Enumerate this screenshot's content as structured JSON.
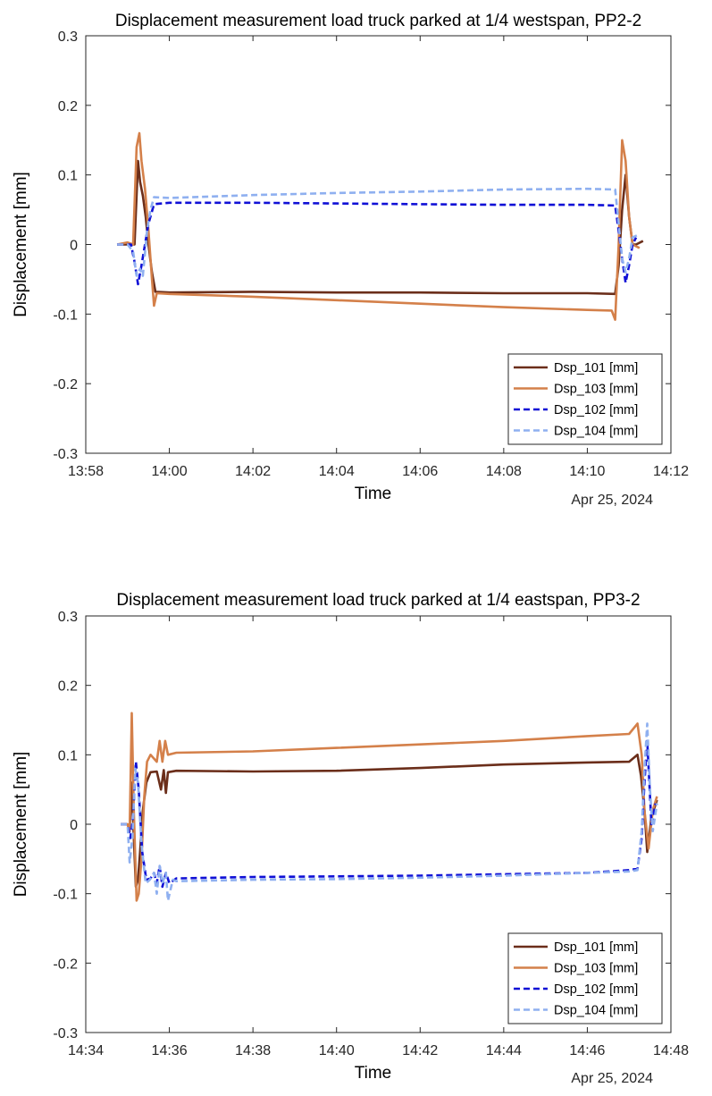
{
  "chart_data": [
    {
      "type": "line",
      "title": "Displacement measurement load truck parked at 1/4 westspan, PP2-2",
      "xlabel": "Time",
      "ylabel": "Displacement [mm]",
      "date_label": "Apr 25, 2024",
      "x_ticks": [
        "13:58",
        "14:00",
        "14:02",
        "14:04",
        "14:06",
        "14:08",
        "14:10",
        "14:12"
      ],
      "xlim": [
        "13:58",
        "14:12"
      ],
      "y_ticks": [
        "-0.3",
        "-0.2",
        "-0.1",
        "0",
        "0.1",
        "0.2",
        "0.3"
      ],
      "ylim": [
        -0.3,
        0.3
      ],
      "legend_position": "bottom-right",
      "grid": false,
      "series": [
        {
          "name": "Dsp_101 [mm]",
          "color": "#6b2e1a",
          "style": "solid",
          "points": [
            [
              "13:58:45",
              0.0
            ],
            [
              "13:59:00",
              0.0
            ],
            [
              "13:59:10",
              0.0
            ],
            [
              "13:59:15",
              0.12
            ],
            [
              "13:59:18",
              0.09
            ],
            [
              "13:59:22",
              0.07
            ],
            [
              "13:59:26",
              0.04
            ],
            [
              "13:59:30",
              0.0
            ],
            [
              "13:59:35",
              -0.04
            ],
            [
              "13:59:40",
              -0.068
            ],
            [
              "14:00:00",
              -0.069
            ],
            [
              "14:02:00",
              -0.068
            ],
            [
              "14:04:00",
              -0.069
            ],
            [
              "14:06:00",
              -0.069
            ],
            [
              "14:08:00",
              -0.07
            ],
            [
              "14:10:00",
              -0.07
            ],
            [
              "14:10:40",
              -0.071
            ],
            [
              "14:10:45",
              -0.03
            ],
            [
              "14:10:50",
              0.05
            ],
            [
              "14:10:55",
              0.1
            ],
            [
              "14:11:00",
              0.04
            ],
            [
              "14:11:05",
              0.0
            ],
            [
              "14:11:10",
              0.0
            ],
            [
              "14:11:20",
              0.005
            ]
          ]
        },
        {
          "name": "Dsp_103 [mm]",
          "color": "#d4804a",
          "style": "solid",
          "points": [
            [
              "13:58:45",
              0.0
            ],
            [
              "13:59:00",
              0.003
            ],
            [
              "13:59:08",
              0.0
            ],
            [
              "13:59:13",
              0.14
            ],
            [
              "13:59:17",
              0.16
            ],
            [
              "13:59:20",
              0.12
            ],
            [
              "13:59:25",
              0.08
            ],
            [
              "13:59:30",
              0.02
            ],
            [
              "13:59:35",
              -0.05
            ],
            [
              "13:59:38",
              -0.088
            ],
            [
              "13:59:42",
              -0.07
            ],
            [
              "14:00:00",
              -0.071
            ],
            [
              "14:02:00",
              -0.075
            ],
            [
              "14:04:00",
              -0.08
            ],
            [
              "14:06:00",
              -0.085
            ],
            [
              "14:08:00",
              -0.09
            ],
            [
              "14:10:00",
              -0.094
            ],
            [
              "14:10:35",
              -0.095
            ],
            [
              "14:10:40",
              -0.108
            ],
            [
              "14:10:45",
              0.0
            ],
            [
              "14:10:50",
              0.15
            ],
            [
              "14:10:55",
              0.12
            ],
            [
              "14:11:00",
              0.04
            ],
            [
              "14:11:05",
              0.0
            ],
            [
              "14:11:15",
              -0.005
            ]
          ]
        },
        {
          "name": "Dsp_102 [mm]",
          "color": "#1010d6",
          "style": "dashed",
          "points": [
            [
              "13:58:45",
              0.0
            ],
            [
              "13:59:05",
              0.0
            ],
            [
              "13:59:10",
              -0.025
            ],
            [
              "13:59:15",
              -0.057
            ],
            [
              "13:59:20",
              -0.03
            ],
            [
              "13:59:25",
              0.0
            ],
            [
              "13:59:30",
              0.03
            ],
            [
              "13:59:38",
              0.058
            ],
            [
              "14:00:00",
              0.06
            ],
            [
              "14:02:00",
              0.06
            ],
            [
              "14:04:00",
              0.059
            ],
            [
              "14:06:00",
              0.058
            ],
            [
              "14:08:00",
              0.057
            ],
            [
              "14:10:00",
              0.057
            ],
            [
              "14:10:40",
              0.056
            ],
            [
              "14:10:45",
              0.02
            ],
            [
              "14:10:50",
              -0.02
            ],
            [
              "14:10:55",
              -0.055
            ],
            [
              "14:11:00",
              -0.03
            ],
            [
              "14:11:05",
              0.0
            ],
            [
              "14:11:10",
              0.01
            ]
          ]
        },
        {
          "name": "Dsp_104 [mm]",
          "color": "#8fb0f0",
          "style": "dashed",
          "points": [
            [
              "13:58:45",
              0.0
            ],
            [
              "13:59:00",
              0.0
            ],
            [
              "13:59:08",
              -0.01
            ],
            [
              "13:59:13",
              -0.045
            ],
            [
              "13:59:18",
              -0.035
            ],
            [
              "13:59:22",
              -0.045
            ],
            [
              "13:59:28",
              0.02
            ],
            [
              "13:59:33",
              0.05
            ],
            [
              "13:59:38",
              0.068
            ],
            [
              "14:00:00",
              0.067
            ],
            [
              "14:02:00",
              0.071
            ],
            [
              "14:04:00",
              0.074
            ],
            [
              "14:06:00",
              0.076
            ],
            [
              "14:08:00",
              0.079
            ],
            [
              "14:10:00",
              0.08
            ],
            [
              "14:10:40",
              0.079
            ],
            [
              "14:10:45",
              0.03
            ],
            [
              "14:10:50",
              -0.02
            ],
            [
              "14:10:55",
              -0.04
            ],
            [
              "14:11:00",
              -0.02
            ],
            [
              "14:11:05",
              0.01
            ],
            [
              "14:11:15",
              0.015
            ]
          ]
        }
      ]
    },
    {
      "type": "line",
      "title": "Displacement measurement load truck parked at 1/4 eastspan, PP3-2",
      "xlabel": "Time",
      "ylabel": "Displacement [mm]",
      "date_label": "Apr 25, 2024",
      "x_ticks": [
        "14:34",
        "14:36",
        "14:38",
        "14:40",
        "14:42",
        "14:44",
        "14:46",
        "14:48"
      ],
      "xlim": [
        "14:34",
        "14:48"
      ],
      "y_ticks": [
        "-0.3",
        "-0.2",
        "-0.1",
        "0",
        "0.1",
        "0.2",
        "0.3"
      ],
      "ylim": [
        -0.3,
        0.3
      ],
      "legend_position": "bottom-right",
      "grid": false,
      "series": [
        {
          "name": "Dsp_101 [mm]",
          "color": "#6b2e1a",
          "style": "solid",
          "points": [
            [
              "14:34:50",
              0.0
            ],
            [
              "14:35:00",
              0.0
            ],
            [
              "14:35:03",
              -0.01
            ],
            [
              "14:35:06",
              0.06
            ],
            [
              "14:35:09",
              -0.02
            ],
            [
              "14:35:12",
              -0.09
            ],
            [
              "14:35:15",
              -0.08
            ],
            [
              "14:35:18",
              -0.04
            ],
            [
              "14:35:22",
              0.02
            ],
            [
              "14:35:27",
              0.06
            ],
            [
              "14:35:33",
              0.075
            ],
            [
              "14:35:42",
              0.076
            ],
            [
              "14:35:48",
              0.05
            ],
            [
              "14:35:52",
              0.078
            ],
            [
              "14:35:55",
              0.045
            ],
            [
              "14:35:58",
              0.075
            ],
            [
              "14:36:10",
              0.077
            ],
            [
              "14:38:00",
              0.076
            ],
            [
              "14:40:00",
              0.077
            ],
            [
              "14:42:00",
              0.081
            ],
            [
              "14:44:00",
              0.086
            ],
            [
              "14:46:00",
              0.089
            ],
            [
              "14:47:00",
              0.09
            ],
            [
              "14:47:12",
              0.1
            ],
            [
              "14:47:17",
              0.07
            ],
            [
              "14:47:22",
              0.02
            ],
            [
              "14:47:26",
              -0.04
            ],
            [
              "14:47:32",
              0.01
            ],
            [
              "14:47:40",
              0.035
            ]
          ]
        },
        {
          "name": "Dsp_103 [mm]",
          "color": "#d4804a",
          "style": "solid",
          "points": [
            [
              "14:34:50",
              0.0
            ],
            [
              "14:35:00",
              0.0
            ],
            [
              "14:35:03",
              -0.01
            ],
            [
              "14:35:06",
              0.16
            ],
            [
              "14:35:09",
              0.02
            ],
            [
              "14:35:13",
              -0.11
            ],
            [
              "14:35:16",
              -0.1
            ],
            [
              "14:35:20",
              -0.05
            ],
            [
              "14:35:24",
              0.04
            ],
            [
              "14:35:28",
              0.09
            ],
            [
              "14:35:33",
              0.1
            ],
            [
              "14:35:42",
              0.09
            ],
            [
              "14:35:46",
              0.12
            ],
            [
              "14:35:50",
              0.09
            ],
            [
              "14:35:54",
              0.12
            ],
            [
              "14:35:58",
              0.1
            ],
            [
              "14:36:10",
              0.103
            ],
            [
              "14:38:00",
              0.105
            ],
            [
              "14:40:00",
              0.11
            ],
            [
              "14:42:00",
              0.115
            ],
            [
              "14:44:00",
              0.12
            ],
            [
              "14:46:00",
              0.127
            ],
            [
              "14:47:00",
              0.13
            ],
            [
              "14:47:12",
              0.145
            ],
            [
              "14:47:18",
              0.1
            ],
            [
              "14:47:22",
              0.02
            ],
            [
              "14:47:28",
              -0.035
            ],
            [
              "14:47:34",
              0.02
            ],
            [
              "14:47:40",
              0.04
            ]
          ]
        },
        {
          "name": "Dsp_102 [mm]",
          "color": "#1010d6",
          "style": "dashed",
          "points": [
            [
              "14:34:50",
              0.0
            ],
            [
              "14:35:00",
              0.0
            ],
            [
              "14:35:04",
              -0.02
            ],
            [
              "14:35:08",
              0.01
            ],
            [
              "14:35:12",
              0.09
            ],
            [
              "14:35:16",
              0.05
            ],
            [
              "14:35:21",
              -0.04
            ],
            [
              "14:35:27",
              -0.08
            ],
            [
              "14:35:33",
              -0.078
            ],
            [
              "14:35:38",
              -0.07
            ],
            [
              "14:35:42",
              -0.085
            ],
            [
              "14:35:46",
              -0.06
            ],
            [
              "14:35:50",
              -0.09
            ],
            [
              "14:35:55",
              -0.07
            ],
            [
              "14:36:00",
              -0.085
            ],
            [
              "14:36:10",
              -0.078
            ],
            [
              "14:38:00",
              -0.076
            ],
            [
              "14:40:00",
              -0.075
            ],
            [
              "14:42:00",
              -0.074
            ],
            [
              "14:44:00",
              -0.072
            ],
            [
              "14:46:00",
              -0.07
            ],
            [
              "14:47:00",
              -0.066
            ],
            [
              "14:47:12",
              -0.064
            ],
            [
              "14:47:18",
              -0.02
            ],
            [
              "14:47:22",
              0.06
            ],
            [
              "14:47:26",
              0.12
            ],
            [
              "14:47:32",
              0.0
            ],
            [
              "14:47:38",
              0.03
            ]
          ]
        },
        {
          "name": "Dsp_104 [mm]",
          "color": "#8fb0f0",
          "style": "dashed",
          "points": [
            [
              "14:34:50",
              0.0
            ],
            [
              "14:35:00",
              0.0
            ],
            [
              "14:35:03",
              -0.055
            ],
            [
              "14:35:07",
              -0.02
            ],
            [
              "14:35:11",
              0.08
            ],
            [
              "14:35:15",
              0.06
            ],
            [
              "14:35:20",
              -0.03
            ],
            [
              "14:35:26",
              -0.085
            ],
            [
              "14:35:32",
              -0.08
            ],
            [
              "14:35:38",
              -0.07
            ],
            [
              "14:35:42",
              -0.1
            ],
            [
              "14:35:46",
              -0.06
            ],
            [
              "14:35:50",
              -0.085
            ],
            [
              "14:35:55",
              -0.07
            ],
            [
              "14:35:58",
              -0.11
            ],
            [
              "14:36:05",
              -0.08
            ],
            [
              "14:36:10",
              -0.082
            ],
            [
              "14:38:00",
              -0.08
            ],
            [
              "14:40:00",
              -0.079
            ],
            [
              "14:42:00",
              -0.077
            ],
            [
              "14:44:00",
              -0.074
            ],
            [
              "14:46:00",
              -0.07
            ],
            [
              "14:47:00",
              -0.068
            ],
            [
              "14:47:12",
              -0.066
            ],
            [
              "14:47:18",
              -0.01
            ],
            [
              "14:47:22",
              0.08
            ],
            [
              "14:47:26",
              0.145
            ],
            [
              "14:47:30",
              0.05
            ],
            [
              "14:47:34",
              -0.01
            ],
            [
              "14:47:40",
              0.03
            ]
          ]
        }
      ]
    }
  ]
}
